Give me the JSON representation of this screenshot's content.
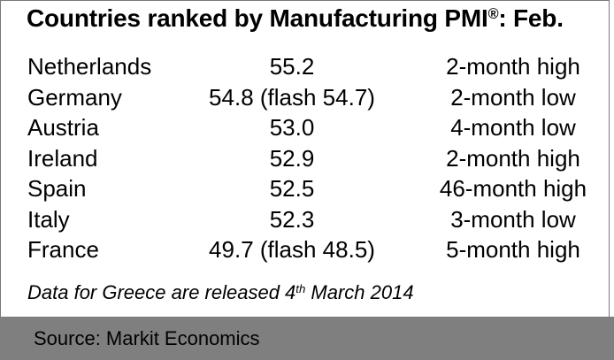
{
  "title": {
    "prefix": "Countries ranked by Manufacturing PMI",
    "registered": "®",
    "suffix": ": Feb."
  },
  "table": {
    "rows": [
      {
        "country": "Netherlands",
        "value": "55.2",
        "note": "2-month high"
      },
      {
        "country": "Germany",
        "value": "54.8 (flash 54.7)",
        "note": "2-month low"
      },
      {
        "country": "Austria",
        "value": "53.0",
        "note": "4-month low"
      },
      {
        "country": "Ireland",
        "value": "52.9",
        "note": "2-month high"
      },
      {
        "country": "Spain",
        "value": "52.5",
        "note": "46-month high"
      },
      {
        "country": "Italy",
        "value": "52.3",
        "note": "3-month low"
      },
      {
        "country": "France",
        "value": "49.7 (flash 48.5)",
        "note": "5-month high"
      }
    ]
  },
  "footnote": {
    "prefix": "Data for Greece are released 4",
    "superscript": "th",
    "suffix": " March 2014"
  },
  "footer": {
    "source_label": "Source: Markit Economics"
  },
  "colors": {
    "footer_bg": "#7f7f7f",
    "frame_border": "#787878",
    "text": "#000000"
  }
}
